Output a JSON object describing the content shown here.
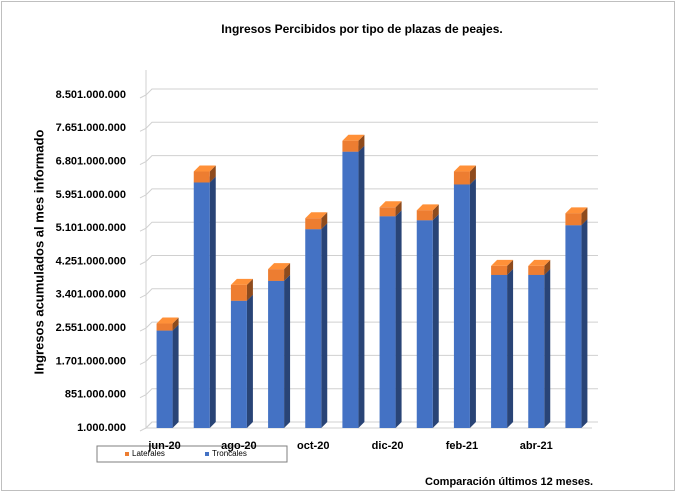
{
  "chart_data": {
    "type": "bar",
    "stacked": true,
    "title": "Ingresos Percibidos por tipo de plazas de peajes.",
    "y_label": "Ingresos acumulados al mes informado",
    "annotation": "Comparación últimos 12 meses.",
    "categories": [
      "jun-20",
      null,
      "ago-20",
      null,
      "oct-20",
      null,
      "dic-20",
      null,
      "feb-21",
      null,
      "abr-21",
      null
    ],
    "series": [
      {
        "name": "Laterales",
        "color": "#ed7d31",
        "values": [
          180000000,
          280000000,
          406000000,
          300000000,
          280000000,
          280000000,
          230000000,
          254000000,
          330000000,
          230000000,
          230000000,
          305000000
        ]
      },
      {
        "name": "Troncales",
        "color": "#4472c4",
        "values": [
          2487000000,
          6267000000,
          3247000000,
          3755000000,
          5074000000,
          7053000000,
          5404000000,
          5302000000,
          6216000000,
          3907000000,
          3907000000,
          5175000000
        ]
      }
    ],
    "ylim": [
      1000000,
      8501000000
    ],
    "yticks": [
      {
        "value": 1000000,
        "label": "1.000.000"
      },
      {
        "value": 851000000,
        "label": "851.000.000"
      },
      {
        "value": 1701000000,
        "label": "1.701.000.000"
      },
      {
        "value": 2551000000,
        "label": "2.551.000.000"
      },
      {
        "value": 3401000000,
        "label": "3.401.000.000"
      },
      {
        "value": 4251000000,
        "label": "4.251.000.000"
      },
      {
        "value": 5101000000,
        "label": "5.101.000.000"
      },
      {
        "value": 5951000000,
        "label": "5.951.000.000"
      },
      {
        "value": 6801000000,
        "label": "6.801.000.000"
      },
      {
        "value": 7651000000,
        "label": "7.651.000.000"
      },
      {
        "value": 8501000000,
        "label": "8.501.000.000"
      }
    ],
    "grid": true,
    "legend": "bottom-left"
  }
}
